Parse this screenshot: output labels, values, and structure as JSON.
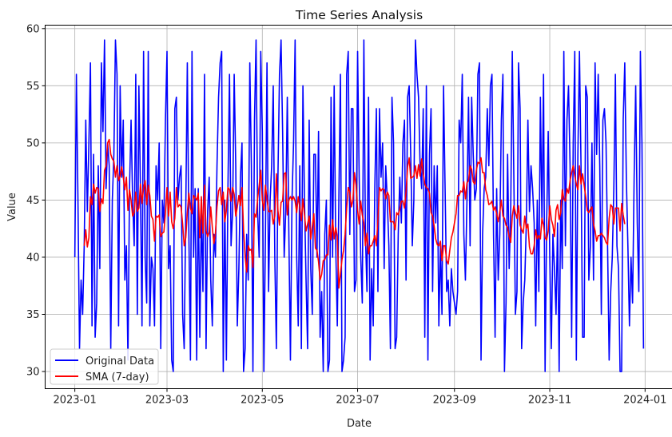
{
  "chart_data": {
    "type": "line",
    "title": "Time Series Analysis",
    "xlabel": "Date",
    "ylabel": "Value",
    "grid": true,
    "legend_position": "lower-left",
    "xlim": [
      "2022-12-13",
      "2024-01-19"
    ],
    "ylim": [
      28.5,
      60.3
    ],
    "x_ticks": [
      "2023-01-01",
      "2023-03-01",
      "2023-05-01",
      "2023-07-01",
      "2023-09-01",
      "2023-11-01",
      "2024-01-01"
    ],
    "x_tick_labels": [
      "2023-01",
      "2023-03",
      "2023-05",
      "2023-07",
      "2023-09",
      "2023-11",
      "2024-01"
    ],
    "y_ticks": [
      30,
      35,
      40,
      45,
      50,
      55,
      60
    ],
    "y_tick_labels": [
      "30",
      "35",
      "40",
      "45",
      "50",
      "55",
      "60"
    ],
    "x_start": "2023-01-01",
    "series": [
      {
        "name": "Original Data",
        "color": "#0000ff",
        "values": [
          40,
          56,
          45,
          32,
          38,
          35,
          41,
          52,
          44,
          50,
          57,
          34,
          49,
          33,
          36,
          48,
          39,
          57,
          51,
          59,
          46,
          50,
          48,
          32,
          45,
          49,
          59,
          56,
          34,
          55,
          47,
          52,
          38,
          41,
          31,
          46,
          52,
          45,
          41,
          56,
          35,
          55,
          46,
          34,
          58,
          40,
          36,
          58,
          34,
          40,
          39,
          34,
          48,
          45,
          50,
          32,
          45,
          43,
          52,
          58,
          39,
          41,
          31,
          30,
          53,
          54,
          45,
          47,
          48,
          35,
          32,
          44,
          57,
          42,
          31,
          58,
          40,
          46,
          31,
          46,
          33,
          44,
          37,
          56,
          32,
          44,
          47,
          38,
          34,
          42,
          40,
          48,
          54,
          57,
          58,
          30,
          45,
          31,
          46,
          56,
          41,
          44,
          56,
          48,
          34,
          39,
          47,
          50,
          30,
          32,
          42,
          38,
          57,
          48,
          30,
          52,
          59,
          44,
          40,
          58,
          51,
          30,
          42,
          57,
          37,
          45,
          48,
          55,
          40,
          32,
          47,
          56,
          59,
          51,
          40,
          44,
          54,
          42,
          31,
          45,
          50,
          59,
          40,
          34,
          48,
          32,
          55,
          45,
          38,
          32,
          52,
          39,
          35,
          49,
          49,
          40,
          51,
          33,
          37,
          30,
          42,
          45,
          30,
          31,
          54,
          40,
          55,
          41,
          34,
          45,
          56,
          30,
          31,
          33,
          56,
          58,
          42,
          53,
          53,
          37,
          38,
          58,
          47,
          40,
          36,
          59,
          42,
          37,
          54,
          31,
          39,
          34,
          46,
          53,
          37,
          53,
          47,
          50,
          39,
          48,
          45,
          41,
          32,
          54,
          50,
          32,
          33,
          42,
          47,
          43,
          50,
          52,
          38,
          54,
          55,
          49,
          41,
          45,
          59,
          56,
          54,
          48,
          46,
          53,
          33,
          55,
          31,
          49,
          53,
          37,
          48,
          43,
          48,
          34,
          41,
          35,
          55,
          46,
          37,
          38,
          34,
          39,
          37,
          36,
          35,
          37,
          52,
          50,
          56,
          42,
          38,
          45,
          54,
          41,
          54,
          49,
          45,
          46,
          56,
          57,
          31,
          42,
          46,
          47,
          53,
          48,
          55,
          56,
          42,
          33,
          46,
          38,
          42,
          52,
          56,
          30,
          36,
          49,
          39,
          44,
          58,
          47,
          35,
          37,
          57,
          53,
          32,
          36,
          38,
          43,
          52,
          44,
          48,
          46,
          43,
          34,
          45,
          37,
          54,
          43,
          56,
          30,
          43,
          51,
          40,
          32,
          42,
          39,
          35,
          43,
          30,
          45,
          39,
          58,
          41,
          52,
          55,
          48,
          33,
          50,
          58,
          31,
          49,
          58,
          48,
          33,
          33,
          55,
          54,
          38,
          41,
          50,
          38,
          57,
          49,
          56,
          48,
          35,
          52,
          53,
          50,
          41,
          31,
          37,
          40,
          46,
          56,
          41,
          39,
          30,
          30,
          52,
          57,
          47,
          41,
          34,
          40,
          36,
          47,
          55,
          43,
          37,
          58,
          50,
          32
        ]
      },
      {
        "name": "SMA (7-day)",
        "color": "#ff0000",
        "values": [
          null,
          null,
          null,
          null,
          null,
          null,
          41.0,
          42.4,
          40.9,
          41.7,
          45.3,
          44.6,
          46.4,
          45.6,
          46.1,
          46.0,
          44.0,
          45.1,
          44.7,
          47.6,
          48.0,
          50.0,
          50.3,
          49.0,
          48.6,
          48.4,
          47.0,
          48.0,
          46.7,
          47.1,
          47.9,
          47.0,
          45.9,
          47.0,
          44.1,
          45.9,
          45.0,
          43.6,
          43.9,
          45.7,
          44.0,
          44.3,
          46.4,
          44.7,
          46.1,
          46.7,
          44.6,
          46.3,
          45.4,
          43.6,
          43.3,
          41.4,
          43.6,
          43.5,
          43.7,
          41.8,
          42.1,
          42.2,
          43.9,
          46.1,
          43.6,
          45.7,
          43.1,
          42.5,
          43.4,
          46.1,
          44.4,
          44.6,
          44.4,
          42.9,
          41.0,
          41.7,
          43.9,
          45.6,
          44.3,
          43.8,
          45.4,
          45.2,
          45.0,
          45.6,
          41.7,
          45.3,
          42.1,
          46.3,
          42.3,
          41.8,
          42.2,
          44.4,
          42.6,
          41.2,
          42.1,
          44.4,
          45.8,
          46.1,
          44.6,
          45.7,
          43.1,
          44.1,
          46.1,
          45.9,
          44.9,
          46.1,
          45.5,
          43.6,
          44.4,
          45.4,
          44.5,
          46.1,
          42.4,
          40.1,
          38.7,
          41.0,
          40.6,
          40.7,
          39.1,
          43.8,
          43.5,
          45.1,
          46.3,
          47.6,
          45.0,
          44.1,
          46.3,
          45.1,
          44.0,
          44.0,
          44.1,
          42.9,
          43.6,
          47.3,
          44.1,
          42.8,
          44.8,
          44.9,
          47.3,
          47.4,
          43.7,
          45.0,
          45.3,
          45.0,
          45.3,
          44.9,
          43.9,
          45.3,
          44.4,
          43.2,
          45.1,
          43.7,
          42.3,
          42.9,
          43.6,
          41.6,
          42.7,
          43.8,
          40.8,
          40.6,
          39.6,
          38.0,
          38.5,
          39.7,
          39.8,
          40.2,
          40.2,
          42.8,
          41.5,
          43.3,
          41.6,
          42.6,
          41.8,
          37.3,
          38.5,
          39.8,
          40.6,
          42.0,
          44.3,
          46.1,
          45.7,
          44.4,
          45.0,
          47.4,
          46.3,
          44.1,
          42.9,
          44.9,
          43.7,
          43.0,
          41.0,
          42.1,
          40.3,
          41.0,
          41.0,
          41.4,
          41.9,
          41.0,
          43.3,
          46.1,
          45.8,
          46.0,
          45.9,
          45.1,
          45.7,
          45.4,
          43.1,
          43.1,
          43.1,
          42.4,
          43.9,
          43.7,
          44.2,
          44.9,
          44.9,
          44.3,
          45.7,
          47.9,
          48.7,
          46.9,
          47.0,
          47.1,
          48.0,
          46.9,
          48.1,
          47.1,
          48.6,
          47.4,
          46.4,
          46.1,
          46.0,
          45.6,
          43.9,
          43.6,
          42.7,
          41.6,
          41.1,
          41.0,
          41.4,
          39.7,
          41.0,
          41.0,
          39.7,
          39.4,
          40.6,
          41.7,
          42.2,
          43.0,
          43.8,
          45.4,
          45.4,
          45.8,
          45.7,
          46.6,
          45.1,
          46.5,
          46.7,
          48.0,
          47.7,
          46.6,
          46.4,
          47.6,
          48.3,
          48.2,
          48.7,
          47.4,
          47.4,
          45.9,
          45.4,
          44.6,
          44.7,
          44.9,
          44.1,
          44.4,
          43.8,
          43.1,
          44.0,
          45.0,
          43.6,
          43.4,
          42.8,
          42.6,
          41.8,
          41.3,
          43.6,
          44.5,
          43.9,
          43.4,
          44.5,
          42.8,
          42.4,
          42.1,
          43.6,
          42.5,
          42.9,
          40.9,
          40.3,
          40.3,
          41.0,
          42.4,
          41.6,
          41.9,
          41.6,
          43.4,
          42.8,
          41.7,
          41.5,
          42.3,
          44.5,
          43.3,
          42.8,
          41.8,
          44.1,
          44.6,
          43.3,
          43.9,
          45.9,
          45.1,
          44.9,
          46.0,
          45.6,
          46.7,
          47.4,
          48.0,
          47.1,
          46.4,
          45.9,
          48.0,
          46.4,
          47.3,
          46.3,
          45.3,
          44.1,
          43.9,
          44.2,
          44.4,
          42.9,
          42.3,
          41.4,
          41.9,
          41.9,
          42.1,
          41.9,
          41.7,
          41.3,
          41.1,
          43.4,
          44.6,
          44.4,
          42.9,
          44.3,
          44.3,
          44.3,
          42.3,
          44.7,
          43.7,
          42.9
        ]
      }
    ]
  }
}
